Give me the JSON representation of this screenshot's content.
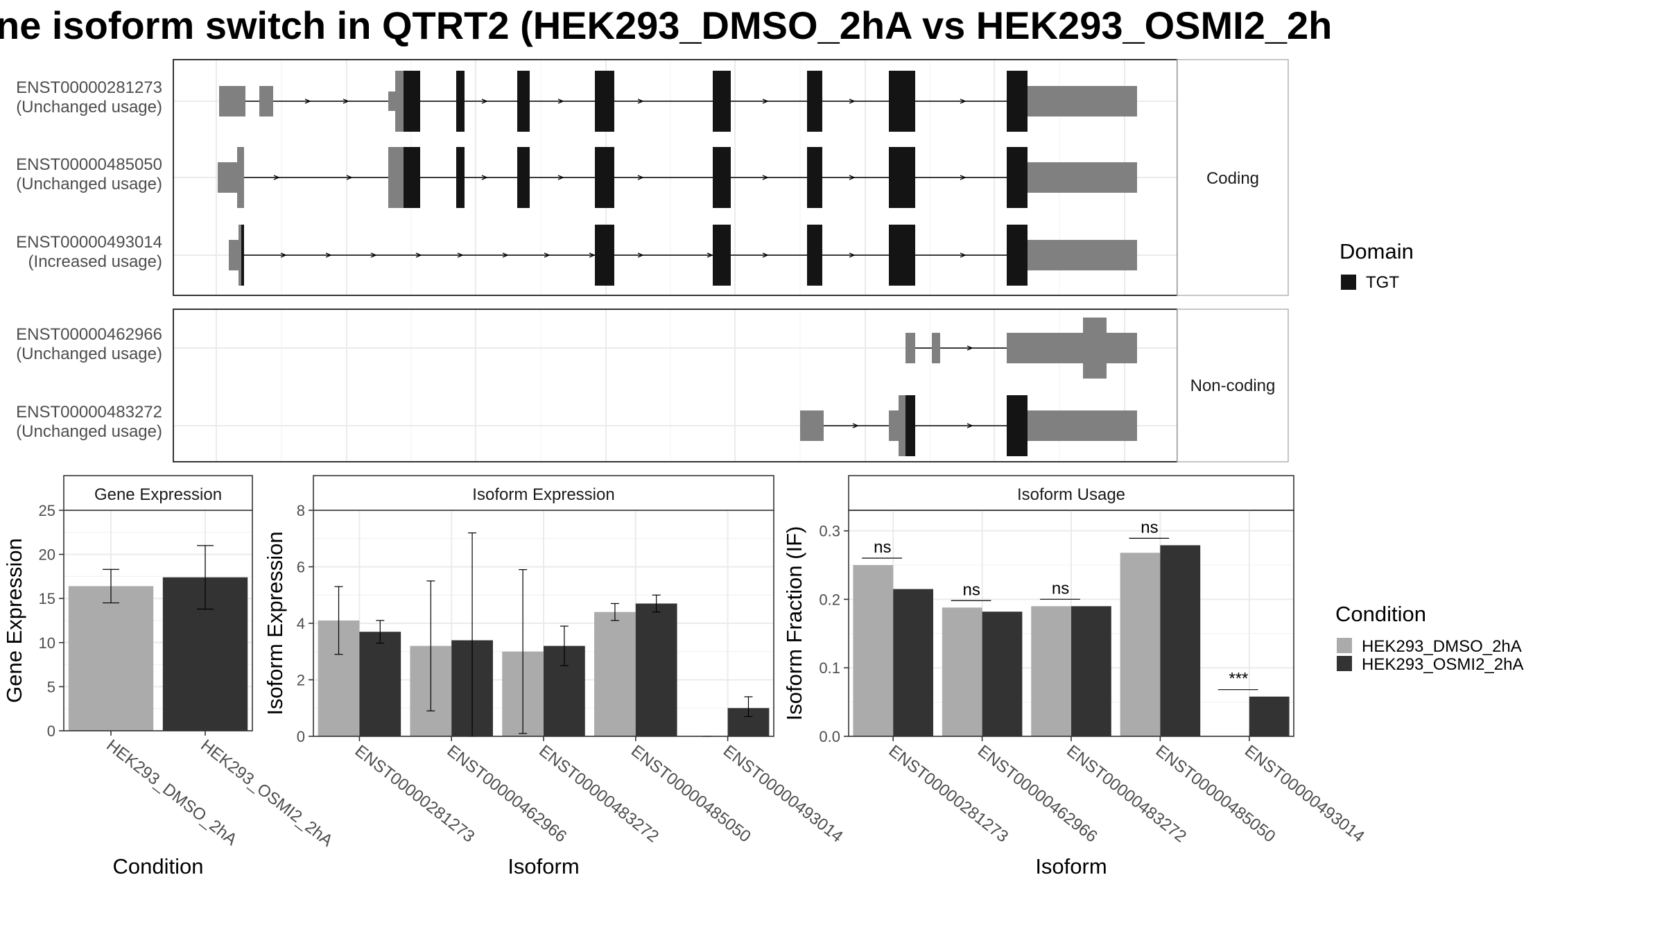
{
  "title": "ne isoform switch in QTRT2 (HEK293_DMSO_2hA vs HEK293_OSMI2_2h",
  "colors": {
    "domain_black": "#141414",
    "utr_grey": "#808080",
    "cond1": "#ababab",
    "cond2": "#333333",
    "grid": "#ebebeb",
    "border": "#333333"
  },
  "transcript_panel": {
    "coding_label": "Coding",
    "noncoding_label": "Non-coding",
    "coding": [
      {
        "id": "ENST00000281273",
        "usage": "(Unchanged usage)"
      },
      {
        "id": "ENST00000485050",
        "usage": "(Unchanged usage)"
      },
      {
        "id": "ENST00000493014",
        "usage": "(Increased usage)"
      }
    ],
    "noncoding": [
      {
        "id": "ENST00000462966",
        "usage": "(Unchanged usage)"
      },
      {
        "id": "ENST00000483272",
        "usage": "(Unchanged usage)"
      }
    ]
  },
  "legend_domain": {
    "title": "Domain",
    "items": [
      "TGT"
    ]
  },
  "legend_condition": {
    "title": "Condition",
    "items": [
      "HEK293_DMSO_2hA",
      "HEK293_OSMI2_2hA"
    ]
  },
  "chart_data": [
    {
      "type": "bar",
      "title": "Gene Expression",
      "xlabel": "Condition",
      "ylabel": "Gene Expression",
      "ylim": [
        0,
        25
      ],
      "yticks": [
        0,
        5,
        10,
        15,
        20,
        25
      ],
      "categories": [
        "HEK293_DMSO_2hA",
        "HEK293_OSMI2_2hA"
      ],
      "values": [
        16.4,
        17.4
      ],
      "errors": [
        [
          14.5,
          18.3
        ],
        [
          13.8,
          21.0
        ]
      ]
    },
    {
      "type": "bar",
      "title": "Isoform Expression",
      "xlabel": "Isoform",
      "ylabel": "Isoform Expression",
      "ylim": [
        0,
        8
      ],
      "yticks": [
        0,
        2,
        4,
        6,
        8
      ],
      "categories": [
        "ENST00000281273",
        "ENST00000462966",
        "ENST00000483272",
        "ENST00000485050",
        "ENST00000493014"
      ],
      "series": [
        {
          "name": "HEK293_DMSO_2hA",
          "values": [
            4.1,
            3.2,
            3.0,
            4.4,
            0.0
          ],
          "errors": [
            [
              2.9,
              5.3
            ],
            [
              0.9,
              5.5
            ],
            [
              0.1,
              5.9
            ],
            [
              4.1,
              4.7
            ],
            [
              0.0,
              0.0
            ]
          ]
        },
        {
          "name": "HEK293_OSMI2_2hA",
          "values": [
            3.7,
            3.4,
            3.2,
            4.7,
            1.0
          ],
          "errors": [
            [
              3.3,
              4.1
            ],
            [
              0.0,
              7.2
            ],
            [
              2.5,
              3.9
            ],
            [
              4.4,
              5.0
            ],
            [
              0.7,
              1.4
            ]
          ]
        }
      ]
    },
    {
      "type": "bar",
      "title": "Isoform Usage",
      "xlabel": "Isoform",
      "ylabel": "Isoform Fraction (IF)",
      "ylim": [
        0,
        0.33
      ],
      "yticks": [
        0.0,
        0.1,
        0.2,
        0.3
      ],
      "ytick_labels": [
        "0.0",
        "0.1",
        "0.2",
        "0.3"
      ],
      "categories": [
        "ENST00000281273",
        "ENST00000462966",
        "ENST00000483272",
        "ENST00000485050",
        "ENST00000493014"
      ],
      "series": [
        {
          "name": "HEK293_DMSO_2hA",
          "values": [
            0.25,
            0.188,
            0.19,
            0.268,
            0.0
          ]
        },
        {
          "name": "HEK293_OSMI2_2hA",
          "values": [
            0.215,
            0.182,
            0.19,
            0.279,
            0.058
          ]
        }
      ],
      "significance": [
        "ns",
        "ns",
        "ns",
        "ns",
        "***"
      ]
    }
  ]
}
